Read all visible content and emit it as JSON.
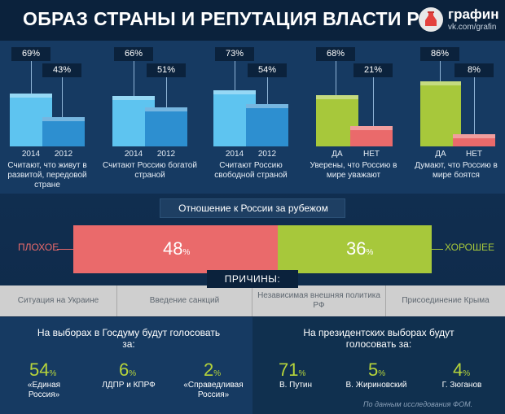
{
  "title": "ОБРАЗ СТРАНЫ И РЕПУТАЦИЯ ВЛАСТИ РФ",
  "logo": {
    "name": "графин",
    "sub": "vk.com/grafin"
  },
  "colors": {
    "blue_light": "#5ec4f0",
    "blue_dark": "#2d8fd0",
    "green": "#a7c83b",
    "red": "#ea6a6b",
    "bg": "#123257"
  },
  "stats": [
    {
      "a_value": "69%",
      "b_value": "43%",
      "a_label": "2014",
      "b_label": "2012",
      "caption": "Считают, что живут в развитой, передовой стране",
      "type": "year"
    },
    {
      "a_value": "66%",
      "b_value": "51%",
      "a_label": "2014",
      "b_label": "2012",
      "caption": "Считают Россию богатой страной",
      "type": "year"
    },
    {
      "a_value": "73%",
      "b_value": "54%",
      "a_label": "2014",
      "b_label": "2012",
      "caption": "Считают Россию свободной страной",
      "type": "year"
    },
    {
      "a_value": "68%",
      "b_value": "21%",
      "a_label": "ДА",
      "b_label": "НЕТ",
      "caption": "Уверены, что Россию в мире уважают",
      "type": "yesno"
    },
    {
      "a_value": "86%",
      "b_value": "8%",
      "a_label": "ДА",
      "b_label": "НЕТ",
      "caption": "Думают, что Россию в мире боятся",
      "type": "yesno"
    }
  ],
  "attitude": {
    "title": "Отношение к России за рубежом",
    "bad_label": "ПЛОХОЕ",
    "good_label": "ХОРОШЕЕ",
    "bad_value": "48",
    "good_value": "36",
    "bad_pct": 48,
    "good_pct": 36,
    "unit": "%"
  },
  "reasons": {
    "title": "ПРИЧИНЫ:",
    "items": [
      "Ситуация на Украине",
      "Введение санкций",
      "Независимая внешняя политика РФ",
      "Присоединение Крыма"
    ]
  },
  "duma": {
    "heading": "На выборах в Госдуму будут голосовать за:",
    "items": [
      {
        "value": "54",
        "name": "«Единая Россия»"
      },
      {
        "value": "6",
        "name": "ЛДПР и КПРФ"
      },
      {
        "value": "2",
        "name": "«Справедливая Россия»"
      }
    ]
  },
  "president": {
    "heading": "На президентских выборах будут голосовать за:",
    "items": [
      {
        "value": "71",
        "name": "В. Путин"
      },
      {
        "value": "5",
        "name": "В. Жириновский"
      },
      {
        "value": "4",
        "name": "Г. Зюганов"
      }
    ]
  },
  "unit_pct": "%",
  "source": "По данным исследования ФОМ."
}
